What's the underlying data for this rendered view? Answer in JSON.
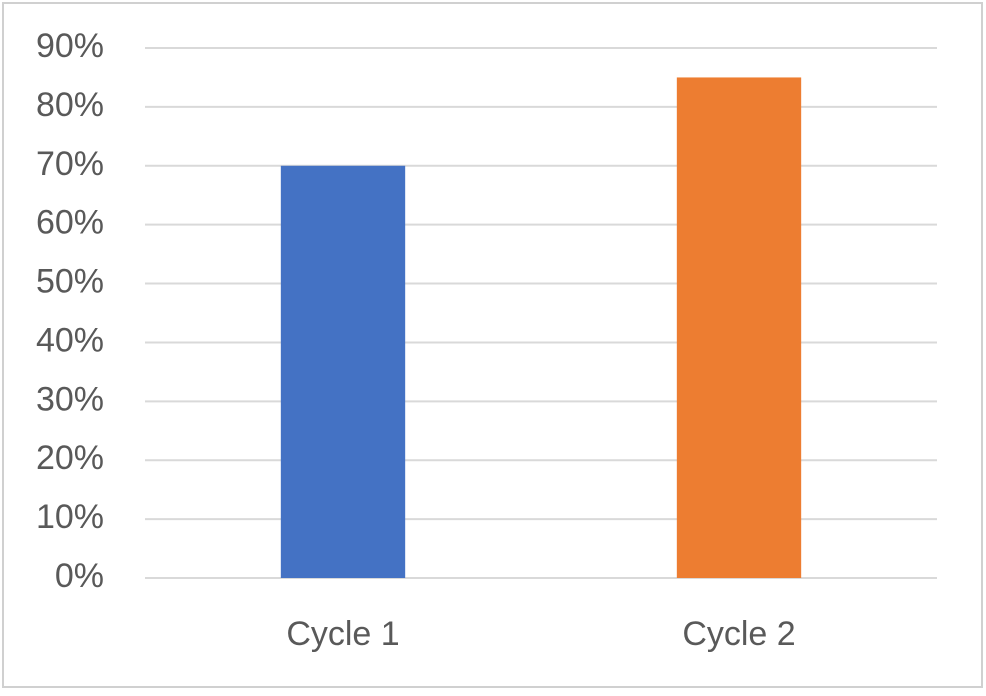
{
  "chart_data": {
    "type": "bar",
    "categories": [
      "Cycle 1",
      "Cycle 2"
    ],
    "values": [
      70,
      85
    ],
    "colors": [
      "#4472c4",
      "#ed7d31"
    ],
    "ylim": [
      0,
      90
    ],
    "yticks": [
      {
        "value": 0,
        "label": "0%"
      },
      {
        "value": 10,
        "label": "10%"
      },
      {
        "value": 20,
        "label": "20%"
      },
      {
        "value": 30,
        "label": "30%"
      },
      {
        "value": 40,
        "label": "40%"
      },
      {
        "value": 50,
        "label": "50%"
      },
      {
        "value": 60,
        "label": "60%"
      },
      {
        "value": 70,
        "label": "70%"
      },
      {
        "value": 80,
        "label": "80%"
      },
      {
        "value": 90,
        "label": "90%"
      }
    ],
    "grid": true
  }
}
